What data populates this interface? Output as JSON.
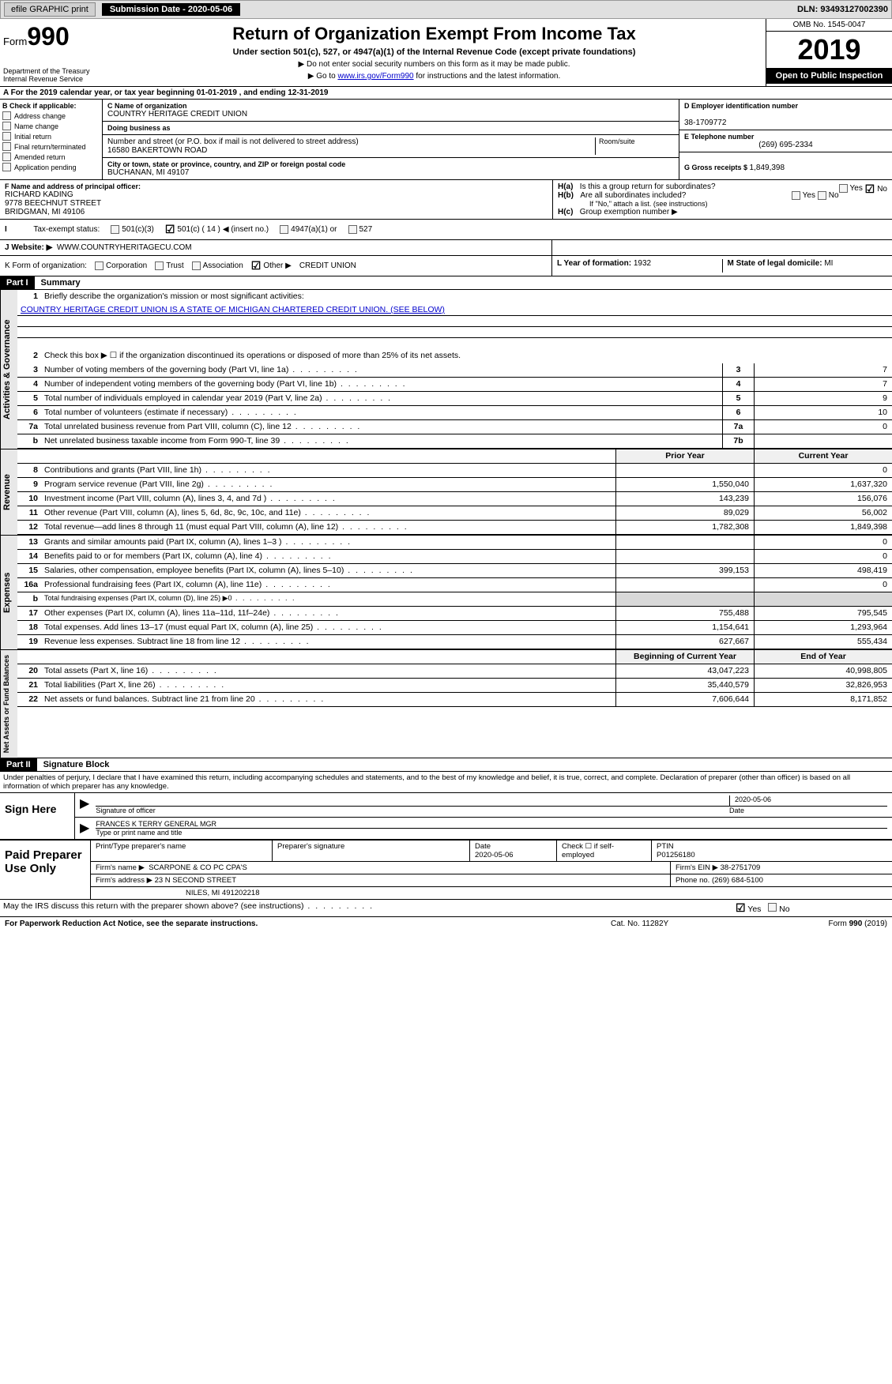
{
  "topbar": {
    "efile_label": "efile GRAPHIC print",
    "submission_label": "Submission Date - 2020-05-06",
    "dln": "DLN: 93493127002390"
  },
  "header": {
    "form_prefix": "Form",
    "form_num": "990",
    "dept1": "Department of the Treasury",
    "dept2": "Internal Revenue Service",
    "title": "Return of Organization Exempt From Income Tax",
    "subtitle": "Under section 501(c), 527, or 4947(a)(1) of the Internal Revenue Code (except private foundations)",
    "instr1": "▶ Do not enter social security numbers on this form as it may be made public.",
    "instr2_pre": "▶ Go to ",
    "instr2_link": "www.irs.gov/Form990",
    "instr2_post": " for instructions and the latest information.",
    "omb": "OMB No. 1545-0047",
    "year": "2019",
    "open_pub": "Open to Public Inspection"
  },
  "line_a": "A   For the 2019 calendar year, or tax year beginning 01-01-2019      , and ending 12-31-2019",
  "col_b": {
    "header": "B Check if applicable:",
    "items": [
      "Address change",
      "Name change",
      "Initial return",
      "Final return/terminated",
      "Amended return",
      "Application pending"
    ]
  },
  "org": {
    "c_lbl": "C Name of organization",
    "name": "COUNTRY HERITAGE CREDIT UNION",
    "dba_lbl": "Doing business as",
    "dba": "",
    "addr_lbl": "Number and street (or P.O. box if mail is not delivered to street address)",
    "addr": "16580 BAKERTOWN ROAD",
    "room_lbl": "Room/suite",
    "city_lbl": "City or town, state or province, country, and ZIP or foreign postal code",
    "city": "BUCHANAN, MI  49107"
  },
  "d": {
    "lbl": "D Employer identification number",
    "val": "38-1709772"
  },
  "e": {
    "lbl": "E Telephone number",
    "val": "(269) 695-2334"
  },
  "g": {
    "lbl": "G Gross receipts $ ",
    "val": "1,849,398"
  },
  "f": {
    "lbl": "F Name and address of principal officer:",
    "name": "RICHARD KADING",
    "addr1": "9778 BEECHNUT STREET",
    "addr2": "BRIDGMAN, MI  49106"
  },
  "h": {
    "a_lbl": "Is this a group return for subordinates?",
    "b_lbl": "Are all subordinates included?",
    "b_note": "If \"No,\" attach a list. (see instructions)",
    "c_lbl": "Group exemption number ▶"
  },
  "i": {
    "lbl": "Tax-exempt status:",
    "opt1": "501(c)(3)",
    "opt2_a": "501(c) ( 14 ) ",
    "opt2_b": "◀ (insert no.)",
    "opt3": "4947(a)(1) or",
    "opt4": "527"
  },
  "j": {
    "lbl": "J   Website: ▶",
    "val": "WWW.COUNTRYHERITAGECU.COM"
  },
  "k": {
    "lbl": "K Form of organization:",
    "opts": [
      "Corporation",
      "Trust",
      "Association",
      "Other ▶"
    ],
    "other_val": "CREDIT UNION"
  },
  "l": {
    "lbl": "L Year of formation: ",
    "val": "1932"
  },
  "m": {
    "lbl": "M State of legal domicile: ",
    "val": "MI"
  },
  "part1": {
    "num": "Part I",
    "title": "Summary"
  },
  "summary": {
    "q1_lbl": "Briefly describe the organization's mission or most significant activities:",
    "q1_text": "COUNTRY HERITAGE CREDIT UNION IS A STATE OF MICHIGAN CHARTERED CREDIT UNION. (SEE BELOW)",
    "q2": "Check this box ▶ ☐ if the organization discontinued its operations or disposed of more than 25% of its net assets.",
    "rows_gov": [
      {
        "n": "3",
        "t": "Number of voting members of the governing body (Part VI, line 1a)",
        "c": "3",
        "v": "7"
      },
      {
        "n": "4",
        "t": "Number of independent voting members of the governing body (Part VI, line 1b)",
        "c": "4",
        "v": "7"
      },
      {
        "n": "5",
        "t": "Total number of individuals employed in calendar year 2019 (Part V, line 2a)",
        "c": "5",
        "v": "9"
      },
      {
        "n": "6",
        "t": "Total number of volunteers (estimate if necessary)",
        "c": "6",
        "v": "10"
      },
      {
        "n": "7a",
        "t": "Total unrelated business revenue from Part VIII, column (C), line 12",
        "c": "7a",
        "v": "0"
      },
      {
        "n": "b",
        "t": "Net unrelated business taxable income from Form 990-T, line 39",
        "c": "7b",
        "v": ""
      }
    ],
    "py_hdr": "Prior Year",
    "cy_hdr": "Current Year",
    "rows_rev": [
      {
        "n": "8",
        "t": "Contributions and grants (Part VIII, line 1h)",
        "py": "",
        "cy": "0"
      },
      {
        "n": "9",
        "t": "Program service revenue (Part VIII, line 2g)",
        "py": "1,550,040",
        "cy": "1,637,320"
      },
      {
        "n": "10",
        "t": "Investment income (Part VIII, column (A), lines 3, 4, and 7d )",
        "py": "143,239",
        "cy": "156,076"
      },
      {
        "n": "11",
        "t": "Other revenue (Part VIII, column (A), lines 5, 6d, 8c, 9c, 10c, and 11e)",
        "py": "89,029",
        "cy": "56,002"
      },
      {
        "n": "12",
        "t": "Total revenue—add lines 8 through 11 (must equal Part VIII, column (A), line 12)",
        "py": "1,782,308",
        "cy": "1,849,398"
      }
    ],
    "rows_exp": [
      {
        "n": "13",
        "t": "Grants and similar amounts paid (Part IX, column (A), lines 1–3 )",
        "py": "",
        "cy": "0"
      },
      {
        "n": "14",
        "t": "Benefits paid to or for members (Part IX, column (A), line 4)",
        "py": "",
        "cy": "0"
      },
      {
        "n": "15",
        "t": "Salaries, other compensation, employee benefits (Part IX, column (A), lines 5–10)",
        "py": "399,153",
        "cy": "498,419"
      },
      {
        "n": "16a",
        "t": "Professional fundraising fees (Part IX, column (A), line 11e)",
        "py": "",
        "cy": "0"
      },
      {
        "n": "b",
        "t": "Total fundraising expenses (Part IX, column (D), line 25) ▶0",
        "py": "shade",
        "cy": "shade"
      },
      {
        "n": "17",
        "t": "Other expenses (Part IX, column (A), lines 11a–11d, 11f–24e)",
        "py": "755,488",
        "cy": "795,545"
      },
      {
        "n": "18",
        "t": "Total expenses. Add lines 13–17 (must equal Part IX, column (A), line 25)",
        "py": "1,154,641",
        "cy": "1,293,964"
      },
      {
        "n": "19",
        "t": "Revenue less expenses. Subtract line 18 from line 12",
        "py": "627,667",
        "cy": "555,434"
      }
    ],
    "boy_hdr": "Beginning of Current Year",
    "eoy_hdr": "End of Year",
    "rows_net": [
      {
        "n": "20",
        "t": "Total assets (Part X, line 16)",
        "py": "43,047,223",
        "cy": "40,998,805"
      },
      {
        "n": "21",
        "t": "Total liabilities (Part X, line 26)",
        "py": "35,440,579",
        "cy": "32,826,953"
      },
      {
        "n": "22",
        "t": "Net assets or fund balances. Subtract line 21 from line 20",
        "py": "7,606,644",
        "cy": "8,171,852"
      }
    ]
  },
  "tabs": {
    "gov": "Activities & Governance",
    "rev": "Revenue",
    "exp": "Expenses",
    "net": "Net Assets or Fund Balances"
  },
  "part2": {
    "num": "Part II",
    "title": "Signature Block"
  },
  "perjury": "Under penalties of perjury, I declare that I have examined this return, including accompanying schedules and statements, and to the best of my knowledge and belief, it is true, correct, and complete. Declaration of preparer (other than officer) is based on all information of which preparer has any knowledge.",
  "sign": {
    "label": "Sign Here",
    "date": "2020-05-06",
    "sig_of_officer": "Signature of officer",
    "date_lbl": "Date",
    "name_title": "FRANCES K TERRY  GENERAL MGR",
    "type_lbl": "Type or print name and title"
  },
  "prep": {
    "label": "Paid Preparer Use Only",
    "print_lbl": "Print/Type preparer's name",
    "sig_lbl": "Preparer's signature",
    "date_lbl": "Date",
    "date": "2020-05-06",
    "check_lbl": "Check ☐ if self-employed",
    "ptin_lbl": "PTIN",
    "ptin": "P01256180",
    "firm_name_lbl": "Firm's name    ▶",
    "firm_name": "SCARPONE & CO PC CPA'S",
    "firm_ein_lbl": "Firm's EIN ▶",
    "firm_ein": "38-2751709",
    "firm_addr_lbl": "Firm's address ▶",
    "firm_addr1": "23 N SECOND STREET",
    "firm_addr2": "NILES, MI  491202218",
    "phone_lbl": "Phone no. ",
    "phone": "(269) 684-5100"
  },
  "discuss": "May the IRS discuss this return with the preparer shown above? (see instructions)",
  "footer": {
    "pra": "For Paperwork Reduction Act Notice, see the separate instructions.",
    "cat": "Cat. No. 11282Y",
    "form": "Form 990 (2019)"
  },
  "yes": "Yes",
  "no": "No"
}
